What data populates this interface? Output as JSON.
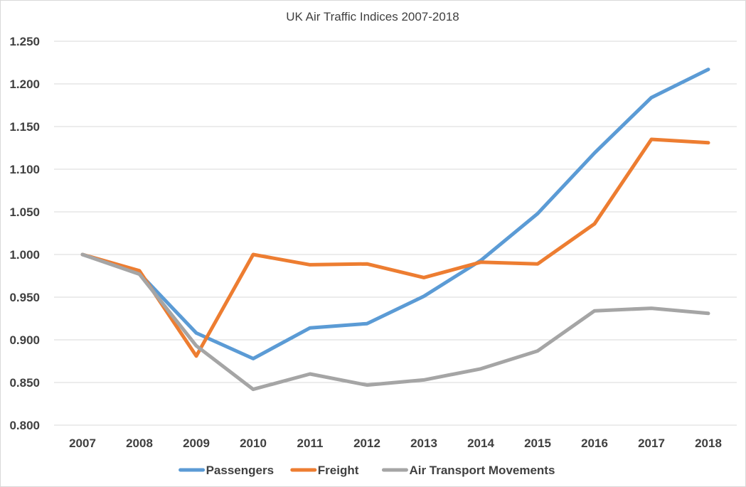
{
  "chart_data": {
    "type": "line",
    "title": "UK Air Traffic Indices 2007-2018",
    "xlabel": "",
    "ylabel": "",
    "categories": [
      "2007",
      "2008",
      "2009",
      "2010",
      "2011",
      "2012",
      "2013",
      "2014",
      "2015",
      "2016",
      "2017",
      "2018"
    ],
    "ylim": [
      0.8,
      1.25
    ],
    "y_ticks": [
      "0.800",
      "0.850",
      "0.900",
      "0.950",
      "1.000",
      "1.050",
      "1.100",
      "1.150",
      "1.200",
      "1.250"
    ],
    "grid": true,
    "legend_position": "bottom",
    "series": [
      {
        "name": "Passengers",
        "color": "#5b9bd5",
        "values": [
          1.0,
          0.978,
          0.908,
          0.878,
          0.914,
          0.919,
          0.951,
          0.993,
          1.048,
          1.119,
          1.184,
          1.217
        ]
      },
      {
        "name": "Freight",
        "color": "#ed7d31",
        "values": [
          1.0,
          0.981,
          0.881,
          1.0,
          0.988,
          0.989,
          0.973,
          0.991,
          0.989,
          1.036,
          1.135,
          1.131
        ]
      },
      {
        "name": "Air Transport Movements",
        "color": "#a5a5a5",
        "values": [
          1.0,
          0.977,
          0.893,
          0.842,
          0.86,
          0.847,
          0.853,
          0.866,
          0.887,
          0.934,
          0.937,
          0.931
        ]
      }
    ]
  }
}
